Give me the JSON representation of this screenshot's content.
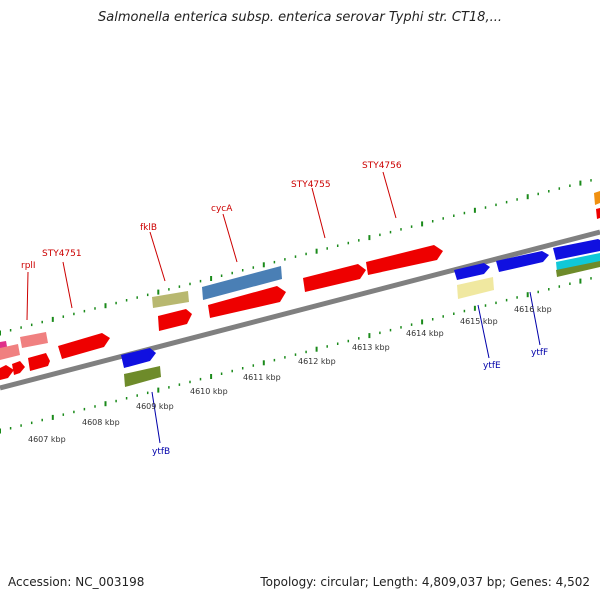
{
  "title": "Salmonella enterica subsp. enterica serovar Typhi str. CT18,...",
  "footer": {
    "accession": "Accession: NC_003198",
    "summary": "Topology: circular; Length: 4,809,037 bp; Genes: 4,502"
  },
  "scale_labels": [
    "4607 kbp",
    "4608 kbp",
    "4609 kbp",
    "4610 kbp",
    "4611 kbp",
    "4612 kbp",
    "4613 kbp",
    "4614 kbp",
    "4615 kbp",
    "4616 kbp"
  ],
  "gene_labels_top": [
    "rplI",
    "STY4751",
    "fklB",
    "cycA",
    "STY4755",
    "STY4756"
  ],
  "gene_labels_bottom": [
    "ytfB",
    "ytfE",
    "ytfF"
  ],
  "colors": {
    "red": "#ee0000",
    "pink": "#f08080",
    "magenta": "#e0308a",
    "blue": "#1010e0",
    "steelblue": "#4a7fb5",
    "khaki": "#b8b870",
    "olive": "#6e8b2a",
    "lightyellow": "#f0e8a0",
    "cyan": "#10c8d8",
    "orange": "#f09010",
    "tick_green": "#1a8a1a",
    "backbone": "#808080"
  }
}
